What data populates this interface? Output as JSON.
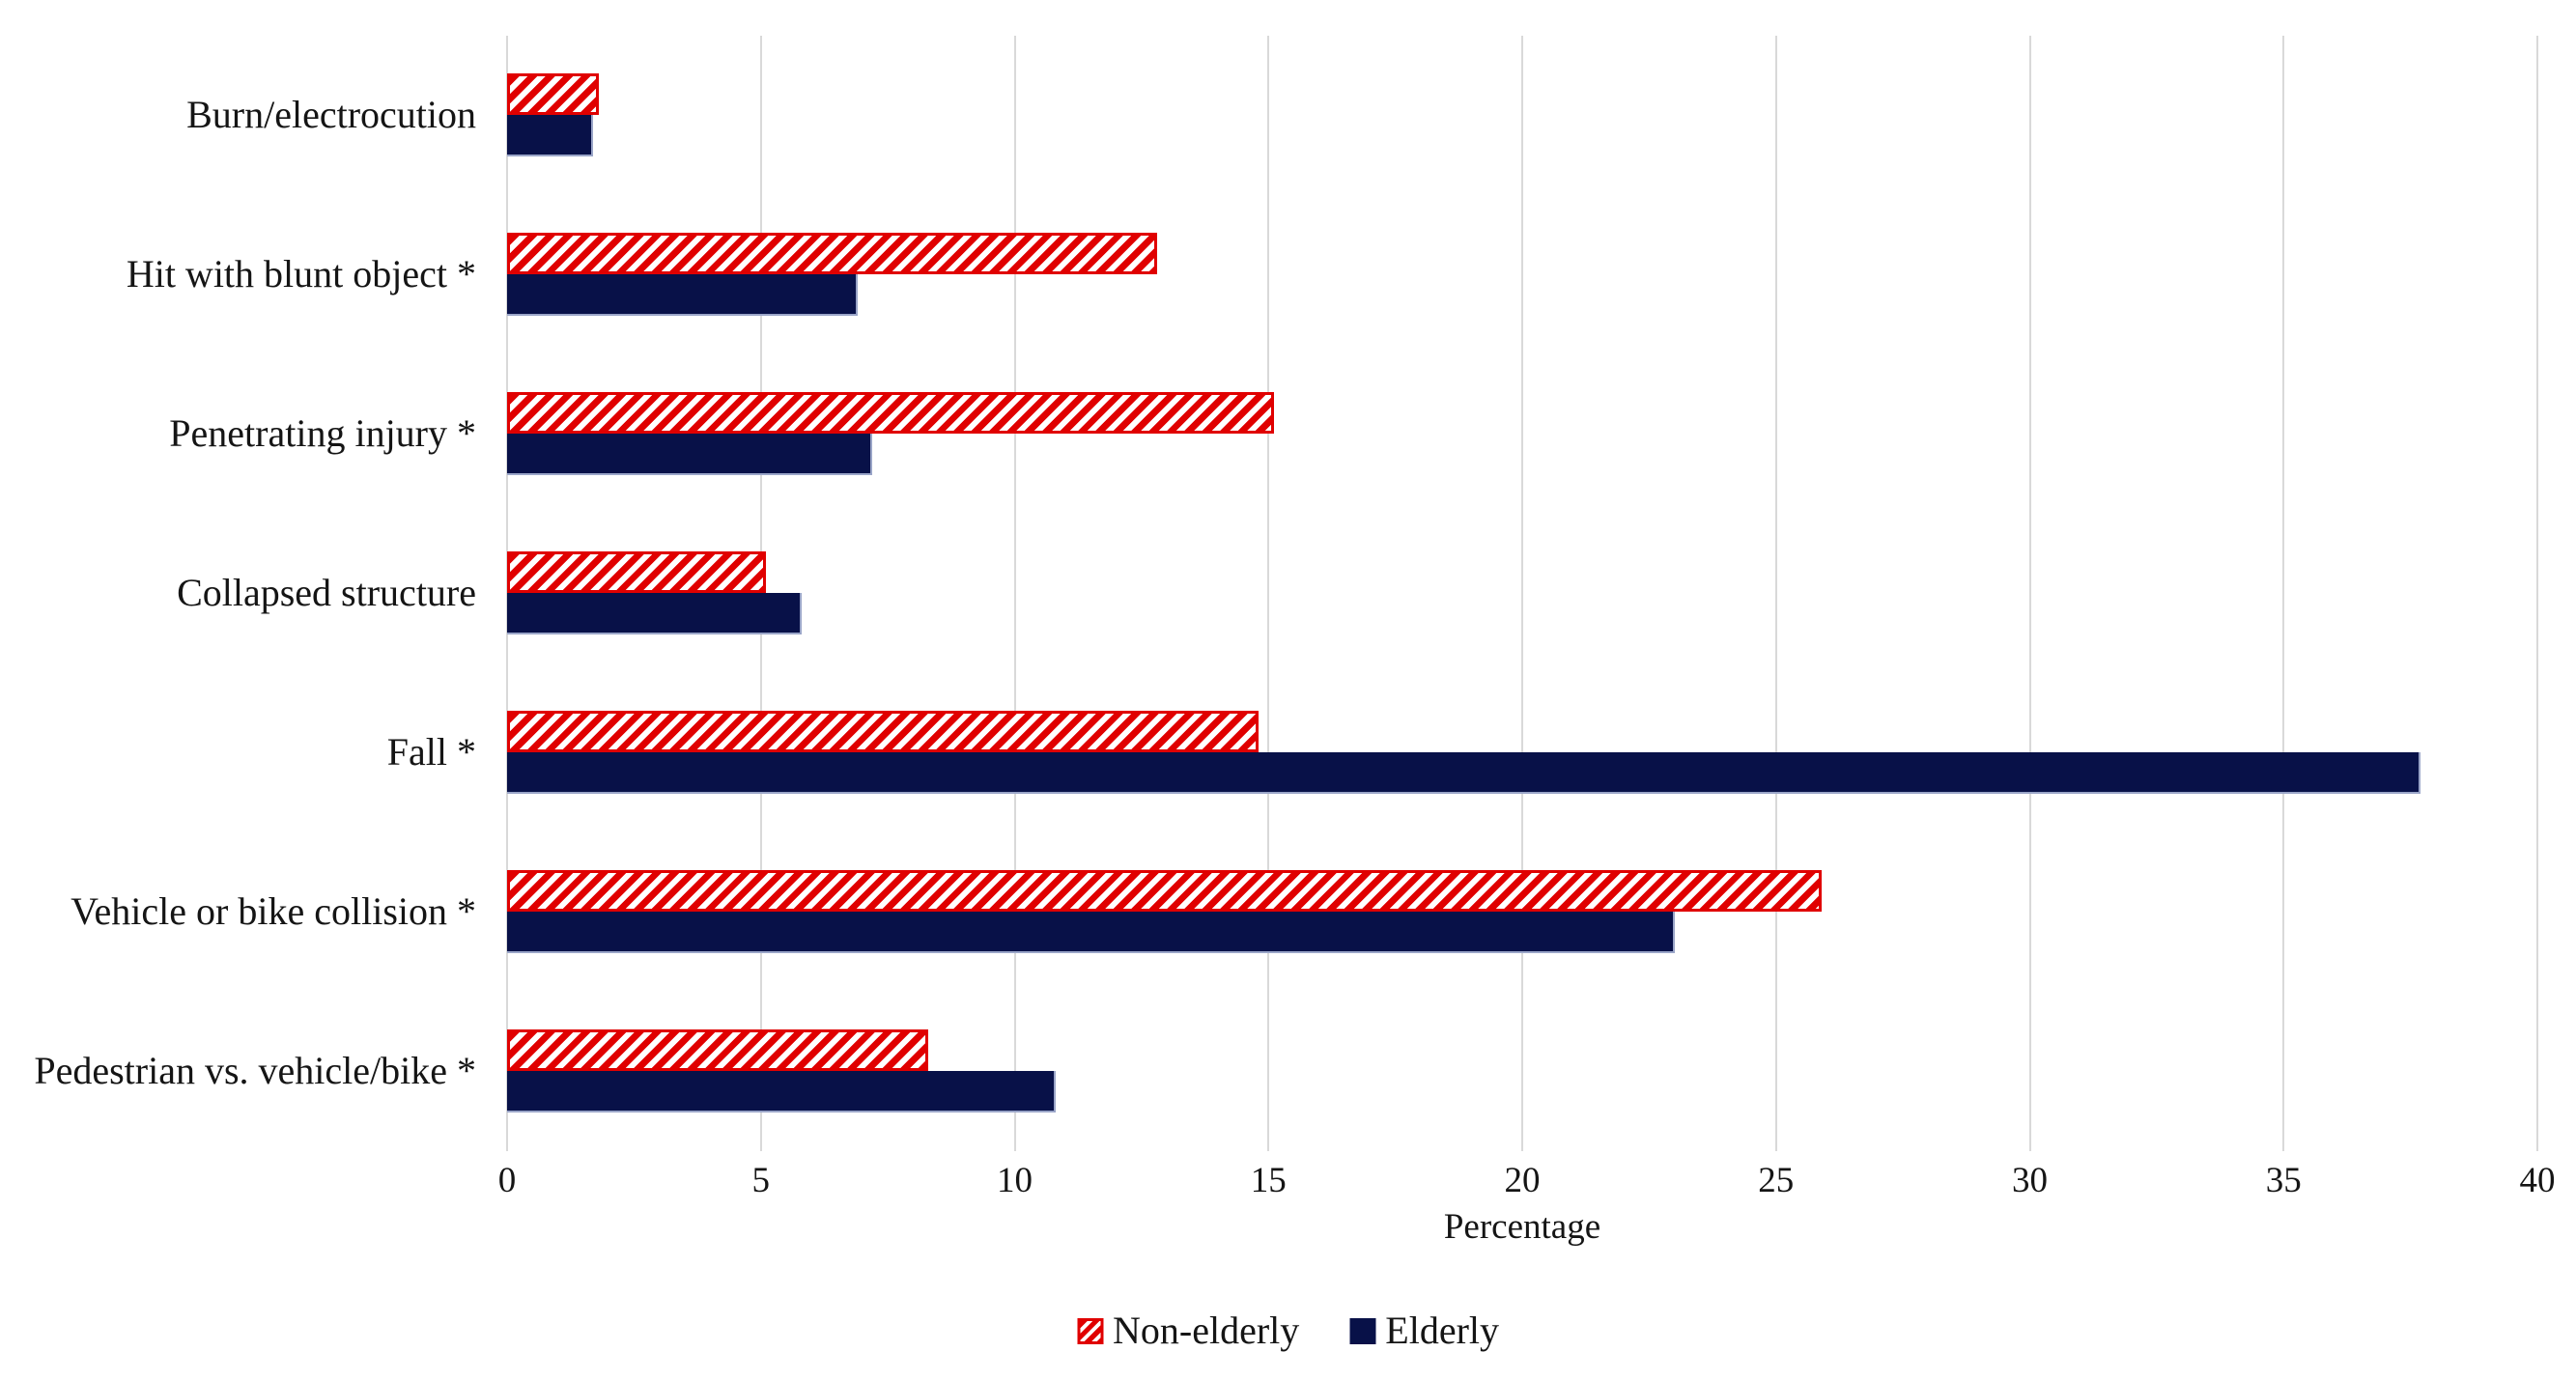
{
  "chart_data": {
    "type": "bar",
    "orientation": "horizontal",
    "title": "",
    "xlabel": "Percentage",
    "ylabel": "",
    "xlim": [
      0,
      40
    ],
    "xticks": [
      0,
      5,
      10,
      15,
      20,
      25,
      30,
      35,
      40
    ],
    "grid": "vertical-gridlines",
    "legend_position": "bottom-center",
    "categories": [
      "Burn/electrocution",
      "Hit with blunt object *",
      "Penetrating injury *",
      "Collapsed structure",
      "Fall *",
      "Vehicle or bike collision *",
      "Pedestrian vs. vehicle/bike *"
    ],
    "series": [
      {
        "name": "Non-elderly",
        "style": "red-diagonal-hatch",
        "color": "#e00000",
        "values": [
          1.8,
          12.8,
          15.1,
          5.1,
          14.8,
          25.9,
          8.3
        ]
      },
      {
        "name": "Elderly",
        "style": "solid",
        "color": "#081148",
        "values": [
          1.7,
          6.9,
          7.2,
          5.8,
          37.7,
          23.0,
          10.8
        ]
      }
    ]
  },
  "colors": {
    "hatch_red": "#e00000",
    "hatch_white": "#ffffff",
    "navy": "#081148",
    "navy_edge": "#9aa5c8",
    "gridline": "#d9d9d9",
    "text": "#151515",
    "background": "#ffffff"
  }
}
